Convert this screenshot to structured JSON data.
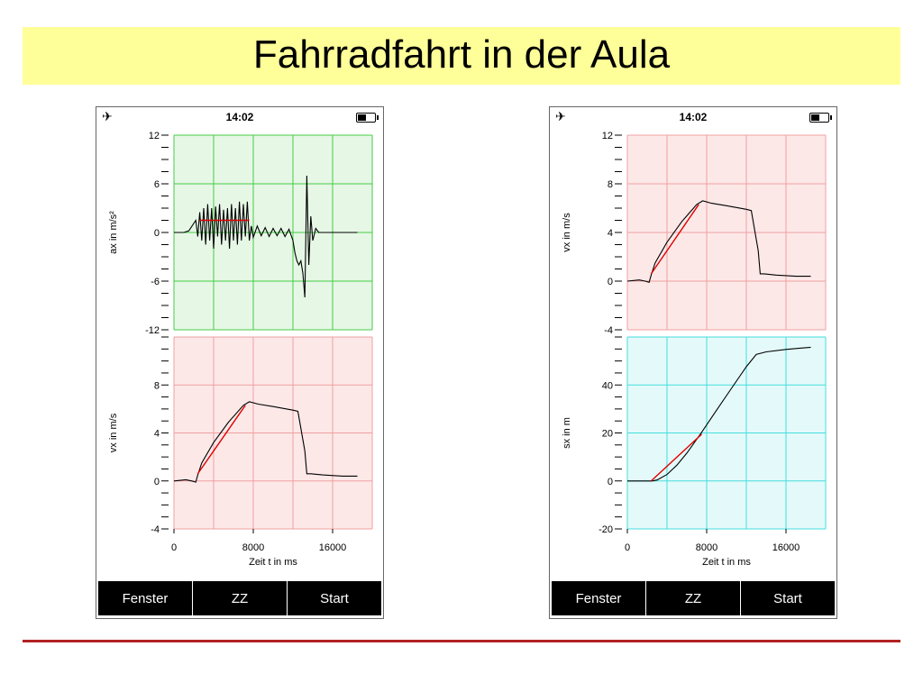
{
  "slide": {
    "title": "Fahrradfahrt in der Aula"
  },
  "colors": {
    "green_bg": "#e6f7e6",
    "green_grid": "#44cc44",
    "red_bg": "#fde8e8",
    "red_grid": "#f0a0a0",
    "cyan_bg": "#e4fafa",
    "cyan_grid": "#44dddd",
    "fit": "#dd0000",
    "title_band": "#ffff99",
    "rule": "#b22222"
  },
  "phones": [
    {
      "status": {
        "time": "14:02",
        "plane_icon": "airplane-icon",
        "battery_icon": "battery-icon"
      },
      "buttons": [
        "Fenster",
        "ZZ",
        "Start"
      ],
      "xlabel": "Zeit t in ms",
      "xticks": [
        "0",
        "8000",
        "16000"
      ]
    },
    {
      "status": {
        "time": "14:02",
        "plane_icon": "airplane-icon",
        "battery_icon": "battery-icon"
      },
      "buttons": [
        "Fenster",
        "ZZ",
        "Start"
      ],
      "xlabel": "Zeit t in ms",
      "xticks": [
        "0",
        "8000",
        "16000"
      ]
    }
  ],
  "chart_data": [
    {
      "type": "line",
      "panel": "left-top",
      "bg": "green",
      "ylabel": "ax in m/s²",
      "ylim": [
        -12,
        12
      ],
      "yticks": [
        "12",
        "6",
        "0",
        "-6",
        "-12"
      ],
      "xlim": [
        0,
        20000
      ],
      "grid": true,
      "series": [
        {
          "values": [
            [
              0,
              0
            ],
            [
              1000,
              0
            ],
            [
              1500,
              0.2
            ],
            [
              2200,
              1.5
            ],
            [
              2400,
              -0.5
            ],
            [
              2600,
              2.5
            ],
            [
              2800,
              -1
            ],
            [
              3000,
              3
            ],
            [
              3200,
              -1.5
            ],
            [
              3400,
              3.5
            ],
            [
              3600,
              -1
            ],
            [
              3800,
              3
            ],
            [
              4000,
              -2
            ],
            [
              4200,
              3.2
            ],
            [
              4400,
              -0.5
            ],
            [
              4600,
              3.5
            ],
            [
              4800,
              -1.5
            ],
            [
              5000,
              2.8
            ],
            [
              5200,
              -1
            ],
            [
              5400,
              3
            ],
            [
              5600,
              -2
            ],
            [
              5800,
              3.5
            ],
            [
              6000,
              -1
            ],
            [
              6200,
              3
            ],
            [
              6400,
              -1.5
            ],
            [
              6600,
              3.8
            ],
            [
              6800,
              -1
            ],
            [
              7000,
              3.5
            ],
            [
              7200,
              -0.5
            ],
            [
              7400,
              3.8
            ],
            [
              7600,
              -1
            ],
            [
              7800,
              0.8
            ],
            [
              8000,
              -0.6
            ],
            [
              8400,
              0.8
            ],
            [
              8800,
              -0.4
            ],
            [
              9200,
              0.6
            ],
            [
              9600,
              -0.5
            ],
            [
              10000,
              0.5
            ],
            [
              10400,
              -0.4
            ],
            [
              10800,
              0.5
            ],
            [
              11200,
              -0.5
            ],
            [
              11600,
              0.4
            ],
            [
              12000,
              -1
            ],
            [
              12200,
              -2.5
            ],
            [
              12400,
              -3.5
            ],
            [
              12600,
              -4
            ],
            [
              12800,
              -3.5
            ],
            [
              13000,
              -5
            ],
            [
              13200,
              -8
            ],
            [
              13400,
              7
            ],
            [
              13600,
              -4
            ],
            [
              13800,
              2
            ],
            [
              14000,
              -1
            ],
            [
              14300,
              0.5
            ],
            [
              14600,
              0
            ],
            [
              16000,
              0
            ],
            [
              18500,
              0
            ]
          ]
        }
      ],
      "fit": {
        "x": [
          2600,
          7600
        ],
        "y": [
          1.5,
          1.5
        ]
      }
    },
    {
      "type": "line",
      "panel": "left-bottom",
      "bg": "red",
      "ylabel": "vx in m/s",
      "ylim": [
        -4,
        12
      ],
      "yticks": [
        "8",
        "4",
        "0",
        "-4"
      ],
      "xlim": [
        0,
        20000
      ],
      "grid": true,
      "series": [
        {
          "values": [
            [
              0,
              0
            ],
            [
              1200,
              0.1
            ],
            [
              1800,
              0
            ],
            [
              2200,
              -0.1
            ],
            [
              2400,
              0.5
            ],
            [
              2800,
              1.5
            ],
            [
              4000,
              3.2
            ],
            [
              5500,
              4.9
            ],
            [
              7000,
              6.3
            ],
            [
              7600,
              6.6
            ],
            [
              8500,
              6.4
            ],
            [
              10000,
              6.2
            ],
            [
              12000,
              5.9
            ],
            [
              12500,
              5.8
            ],
            [
              13200,
              2.5
            ],
            [
              13400,
              0.6
            ],
            [
              13800,
              0.6
            ],
            [
              15000,
              0.5
            ],
            [
              17000,
              0.4
            ],
            [
              18500,
              0.4
            ]
          ]
        }
      ],
      "fit": {
        "x": [
          2400,
          7200
        ],
        "y": [
          0.6,
          6.3
        ]
      }
    },
    {
      "type": "line",
      "panel": "right-top",
      "bg": "red",
      "ylabel": "vx in m/s",
      "ylim": [
        -4,
        12
      ],
      "yticks": [
        "12",
        "8",
        "4",
        "0",
        "-4"
      ],
      "xlim": [
        0,
        20000
      ],
      "grid": true,
      "series": [
        {
          "values": [
            [
              0,
              0
            ],
            [
              1200,
              0.1
            ],
            [
              1800,
              0
            ],
            [
              2200,
              -0.1
            ],
            [
              2400,
              0.5
            ],
            [
              2800,
              1.5
            ],
            [
              4000,
              3.2
            ],
            [
              5500,
              4.9
            ],
            [
              7000,
              6.3
            ],
            [
              7600,
              6.6
            ],
            [
              8500,
              6.4
            ],
            [
              10000,
              6.2
            ],
            [
              12000,
              5.9
            ],
            [
              12500,
              5.8
            ],
            [
              13200,
              2.5
            ],
            [
              13400,
              0.6
            ],
            [
              13800,
              0.6
            ],
            [
              15000,
              0.5
            ],
            [
              17000,
              0.4
            ],
            [
              18500,
              0.4
            ]
          ]
        }
      ],
      "fit": {
        "x": [
          2400,
          7200
        ],
        "y": [
          0.6,
          6.3
        ]
      }
    },
    {
      "type": "line",
      "panel": "right-bottom",
      "bg": "cyan",
      "ylabel": "sx in m",
      "ylim": [
        -20,
        60
      ],
      "yticks": [
        "40",
        "20",
        "0",
        "-20"
      ],
      "xlim": [
        0,
        20000
      ],
      "grid": true,
      "series": [
        {
          "values": [
            [
              0,
              0
            ],
            [
              2500,
              0
            ],
            [
              3000,
              0.4
            ],
            [
              4000,
              2.7
            ],
            [
              5000,
              6.6
            ],
            [
              6000,
              11.6
            ],
            [
              7500,
              20.3
            ],
            [
              9000,
              29.5
            ],
            [
              10500,
              38.6
            ],
            [
              12000,
              47.6
            ],
            [
              13000,
              52.7
            ],
            [
              14000,
              53.8
            ],
            [
              16000,
              54.8
            ],
            [
              18500,
              55.7
            ]
          ]
        }
      ],
      "fit": {
        "x": [
          2400,
          7500
        ],
        "y": [
          0,
          19.5
        ]
      }
    }
  ]
}
